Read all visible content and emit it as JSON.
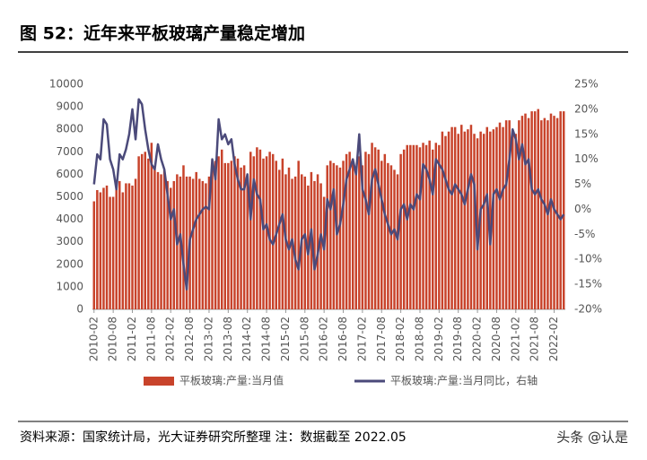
{
  "chart_data": {
    "type": "bar",
    "title": "图 52：近年来平板玻璃产量稳定增加",
    "source": "资料来源：国家统计局，光大证券研究所整理    注：数据截至 2022.05",
    "watermark": "头条 @认是",
    "categories": [
      "2010-02",
      null,
      null,
      null,
      null,
      null,
      "2010-08",
      null,
      null,
      null,
      null,
      null,
      "2011-02",
      null,
      null,
      null,
      null,
      null,
      "2011-08",
      null,
      null,
      null,
      null,
      null,
      "2012-02",
      null,
      null,
      null,
      null,
      null,
      "2012-08",
      null,
      null,
      null,
      null,
      null,
      "2013-02",
      null,
      null,
      null,
      null,
      null,
      "2013-08",
      null,
      null,
      null,
      null,
      null,
      "2014-02",
      null,
      null,
      null,
      null,
      null,
      "2014-08",
      null,
      null,
      null,
      null,
      null,
      "2015-02",
      null,
      null,
      null,
      null,
      null,
      "2015-08",
      null,
      null,
      null,
      null,
      null,
      "2016-02",
      null,
      null,
      null,
      null,
      null,
      "2016-08",
      null,
      null,
      null,
      null,
      null,
      "2017-02",
      null,
      null,
      null,
      null,
      null,
      "2017-08",
      null,
      null,
      null,
      null,
      null,
      "2018-02",
      null,
      null,
      null,
      null,
      null,
      "2018-08",
      null,
      null,
      null,
      null,
      null,
      "2019-02",
      null,
      null,
      null,
      null,
      null,
      "2019-08",
      null,
      null,
      null,
      null,
      null,
      "2020-02",
      null,
      null,
      null,
      null,
      null,
      "2020-08",
      null,
      null,
      null,
      null,
      null,
      "2021-02",
      null,
      null,
      null,
      null,
      null,
      "2021-08",
      null,
      null,
      null,
      null,
      null,
      "2022-02",
      null,
      null,
      null
    ],
    "series": [
      {
        "name": "平板玻璃:产量:当月值",
        "type": "bar",
        "color": "#c8432b",
        "values": [
          4800,
          5300,
          5200,
          5400,
          5500,
          5000,
          5000,
          5400,
          5700,
          5200,
          5600,
          5600,
          5500,
          5800,
          6800,
          6900,
          7000,
          6700,
          7400,
          6200,
          6100,
          6000,
          6200,
          5700,
          5400,
          5700,
          6000,
          5900,
          6400,
          5900,
          5900,
          5800,
          6100,
          5800,
          5700,
          5600,
          5900,
          6400,
          6600,
          6800,
          7100,
          6500,
          6500,
          6600,
          6800,
          6700,
          6300,
          6400,
          5800,
          7000,
          6800,
          7200,
          7100,
          6700,
          6800,
          7000,
          6900,
          6600,
          6200,
          6700,
          6000,
          6300,
          5800,
          5900,
          6600,
          6000,
          5900,
          5500,
          6100,
          5700,
          6000,
          5600,
          5000,
          6400,
          6600,
          6500,
          6400,
          6300,
          6600,
          6900,
          7000,
          6700,
          6200,
          6800,
          6400,
          7000,
          6900,
          7400,
          7200,
          7100,
          6600,
          6900,
          6500,
          6400,
          6200,
          6000,
          6900,
          7100,
          7300,
          7300,
          7300,
          7300,
          7200,
          7400,
          7300,
          7500,
          7100,
          7400,
          7300,
          7900,
          7700,
          7900,
          8100,
          8100,
          7800,
          8200,
          7900,
          8000,
          8200,
          7800,
          7600,
          7900,
          7800,
          8100,
          7900,
          8000,
          8100,
          8300,
          8100,
          8400,
          8400,
          7900,
          7800,
          8400,
          8600,
          8700,
          8500,
          8800,
          8800,
          8900,
          8400,
          8500,
          8400,
          8700,
          8600,
          8500,
          8800,
          8800
        ]
      },
      {
        "name": "平板玻璃:产量:当月同比，右轴",
        "type": "line",
        "axis": "y2",
        "color": "#4b4a7a",
        "values": [
          5,
          11,
          10,
          18,
          17,
          10,
          8,
          4,
          11,
          10,
          12,
          15,
          20,
          14,
          22,
          21,
          16,
          12,
          9,
          8,
          13,
          10,
          8,
          3,
          -2,
          0,
          -7,
          -5,
          -11,
          -16,
          -6,
          -4,
          -2,
          -1,
          0,
          0.5,
          0,
          10,
          6,
          18,
          14,
          15,
          13,
          14,
          9,
          6,
          4,
          4,
          7,
          -2,
          6,
          3,
          2,
          -4,
          -3,
          -6,
          -7,
          -5,
          -3,
          -1,
          -6,
          -8,
          -6,
          -10,
          -12,
          -6,
          -5,
          -9,
          -4,
          -12,
          -9,
          -5,
          -8,
          2,
          0,
          4,
          -5,
          -3,
          1,
          6,
          8,
          10,
          7,
          15,
          4,
          2,
          -1,
          6,
          8,
          5,
          2,
          -1,
          -3,
          -5,
          -4,
          -6,
          0,
          1,
          -2,
          1,
          0,
          3,
          2,
          9,
          8,
          6,
          3,
          10,
          9,
          8,
          6,
          4,
          3,
          5,
          4,
          3,
          1,
          4,
          7,
          5,
          -8,
          0,
          1,
          3,
          -7,
          3,
          4,
          2,
          4,
          5,
          10,
          16,
          14,
          10,
          13,
          9,
          10,
          4,
          3,
          4,
          2,
          1,
          -1,
          2,
          0,
          -1,
          -2,
          -1
        ]
      }
    ],
    "ylim": [
      0,
      10000
    ],
    "yticks": [
      0,
      1000,
      2000,
      3000,
      4000,
      5000,
      6000,
      7000,
      8000,
      9000,
      10000
    ],
    "y2lim": [
      -20,
      25
    ],
    "y2ticks": [
      {
        "value": -20,
        "label": "-20%"
      },
      {
        "value": -15,
        "label": "-15%"
      },
      {
        "value": -10,
        "label": "-10%"
      },
      {
        "value": -5,
        "label": "-5%"
      },
      {
        "value": 0,
        "label": "0%"
      },
      {
        "value": 5,
        "label": "5%"
      },
      {
        "value": 10,
        "label": "10%"
      },
      {
        "value": 15,
        "label": "15%"
      },
      {
        "value": 20,
        "label": "20%"
      },
      {
        "value": 25,
        "label": "25%"
      }
    ],
    "legend": "bottom"
  }
}
